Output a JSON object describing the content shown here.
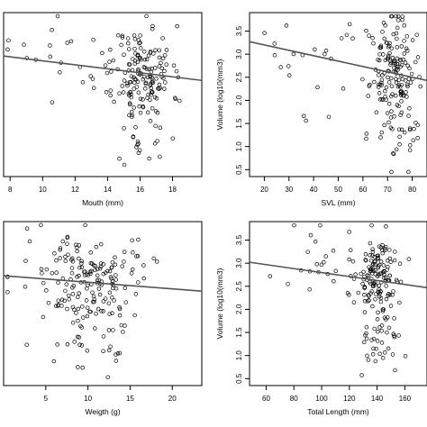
{
  "chart_data": [
    {
      "type": "scatter",
      "xlabel": "Mouth (mm)",
      "ylabel": "",
      "xlim": [
        7.6,
        19.8
      ],
      "ylim": [
        0.3,
        4.0
      ],
      "xticks": [
        8,
        10,
        12,
        14,
        16,
        18
      ],
      "yticks": [],
      "fit": {
        "x": [
          7.6,
          19.8
        ],
        "y": [
          3.02,
          2.47
        ]
      },
      "seed": 11,
      "clusters": [
        {
          "n": 150,
          "cx": 16.2,
          "sx": 0.9,
          "cy": 2.6,
          "sy": 0.55
        },
        {
          "n": 30,
          "cx": 12.5,
          "sx": 3.2,
          "cy": 2.9,
          "sy": 0.55
        },
        {
          "n": 20,
          "cx": 16.3,
          "sx": 1.0,
          "cy": 1.2,
          "sy": 0.3
        }
      ]
    },
    {
      "type": "scatter",
      "xlabel": "SVL (mm)",
      "ylabel": "Volume (log10(mm3)",
      "xlim": [
        14,
        86
      ],
      "ylim": [
        0.35,
        3.9
      ],
      "xticks": [
        20,
        30,
        40,
        50,
        60,
        70,
        80
      ],
      "yticks": [
        0.5,
        1.0,
        1.5,
        2.0,
        2.5,
        3.0,
        3.5
      ],
      "fit": {
        "x": [
          14,
          86
        ],
        "y": [
          3.27,
          2.43
        ]
      },
      "seed": 23,
      "clusters": [
        {
          "n": 150,
          "cx": 72,
          "sx": 4.5,
          "cy": 2.6,
          "sy": 0.55
        },
        {
          "n": 25,
          "cx": 45,
          "sx": 14,
          "cy": 2.9,
          "sy": 0.5
        },
        {
          "n": 25,
          "cx": 74,
          "sx": 5,
          "cy": 1.2,
          "sy": 0.35
        }
      ]
    },
    {
      "type": "scatter",
      "xlabel": "Weigth (g)",
      "ylabel": "",
      "xlim": [
        0,
        23.5
      ],
      "ylim": [
        0.3,
        4.0
      ],
      "xticks": [
        5,
        10,
        15,
        20
      ],
      "yticks": [],
      "fit": {
        "x": [
          0,
          23.5
        ],
        "y": [
          2.78,
          2.43
        ]
      },
      "seed": 37,
      "clusters": [
        {
          "n": 150,
          "cx": 10.2,
          "sx": 2.4,
          "cy": 2.6,
          "sy": 0.55
        },
        {
          "n": 30,
          "cx": 7,
          "sx": 6,
          "cy": 3.0,
          "sy": 0.55
        },
        {
          "n": 20,
          "cx": 10.5,
          "sx": 2.5,
          "cy": 1.1,
          "sy": 0.3
        }
      ]
    },
    {
      "type": "scatter",
      "xlabel": "Total Length (mm)",
      "ylabel": "Volume (log10(mm3)",
      "xlim": [
        48,
        176
      ],
      "ylim": [
        0.35,
        3.9
      ],
      "xticks": [
        60,
        80,
        100,
        120,
        140,
        160
      ],
      "yticks": [
        0.5,
        1.0,
        1.5,
        2.0,
        2.5,
        3.0,
        3.5
      ],
      "fit": {
        "x": [
          48,
          176
        ],
        "y": [
          3.02,
          2.47
        ]
      },
      "seed": 53,
      "clusters": [
        {
          "n": 150,
          "cx": 141,
          "sx": 8,
          "cy": 2.6,
          "sy": 0.55
        },
        {
          "n": 25,
          "cx": 100,
          "sx": 22,
          "cy": 2.9,
          "sy": 0.5
        },
        {
          "n": 25,
          "cx": 142,
          "sx": 9,
          "cy": 1.2,
          "sy": 0.35
        }
      ]
    }
  ]
}
